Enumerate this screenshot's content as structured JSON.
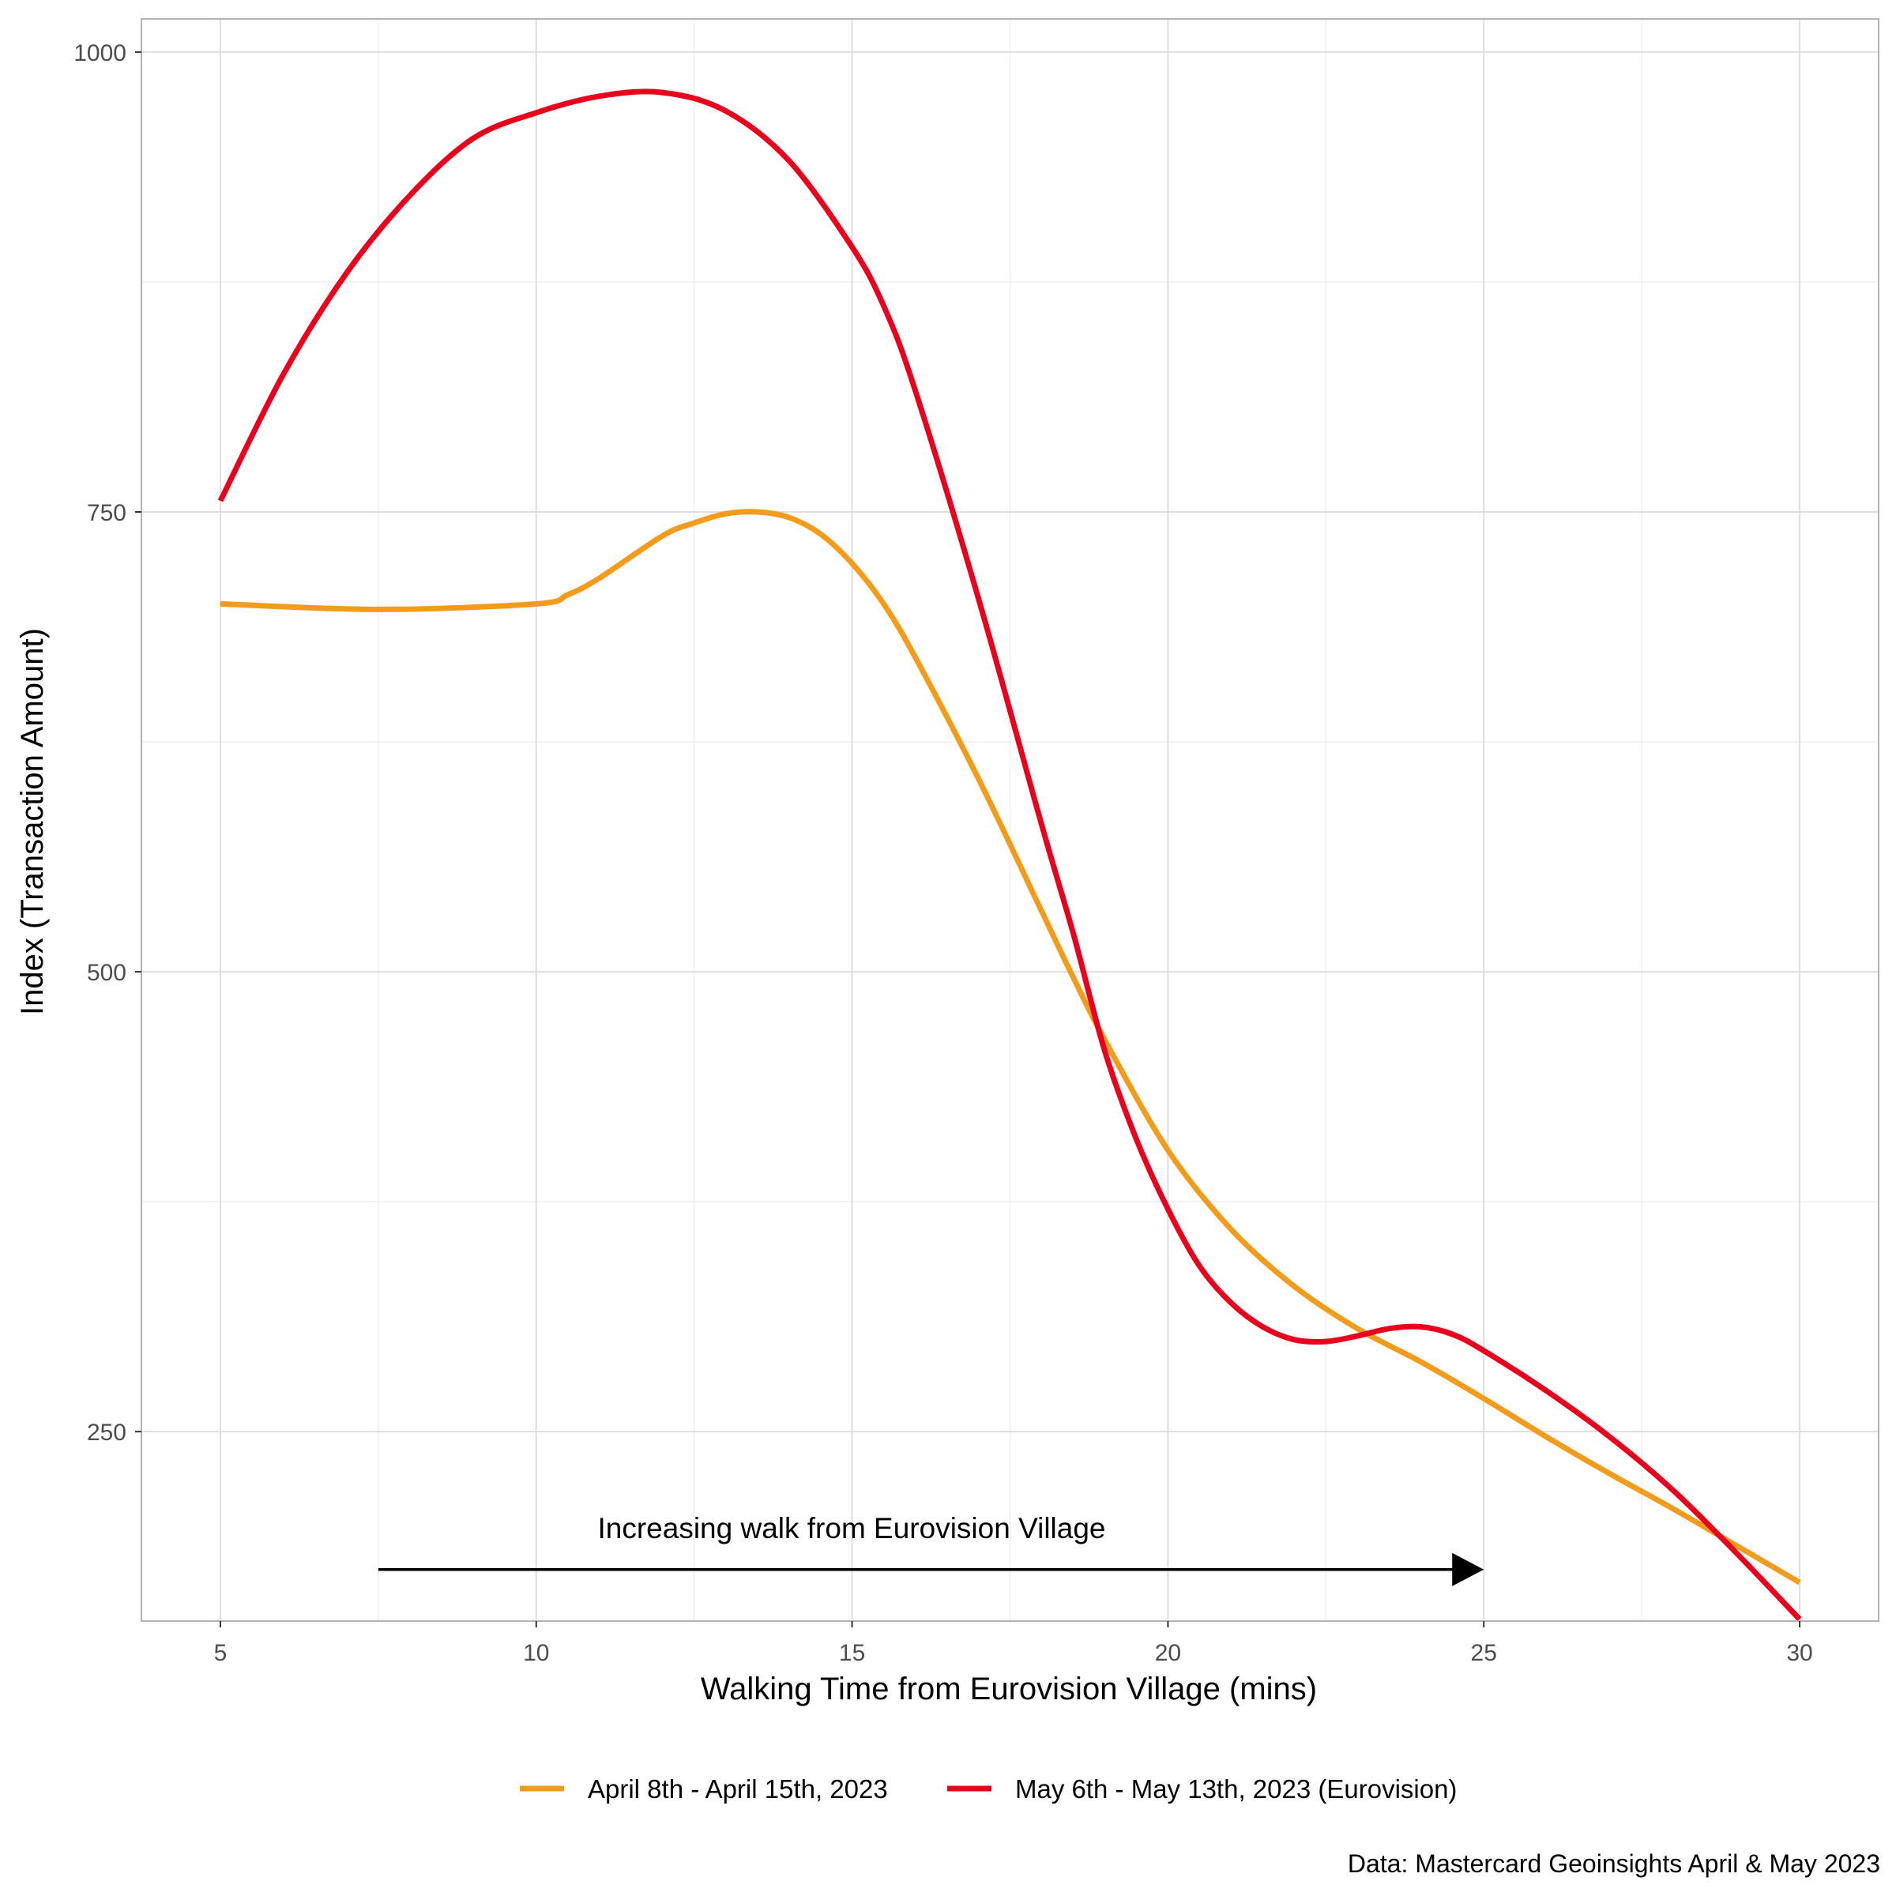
{
  "chart_data": {
    "type": "line",
    "xlabel": "Walking Time from Eurovision Village (mins)",
    "ylabel": "Index (Transaction Amount)",
    "xlim": [
      3.75,
      31.25
    ],
    "ylim": [
      147,
      1018
    ],
    "x_ticks": [
      5,
      10,
      15,
      20,
      25,
      30
    ],
    "y_ticks": [
      250,
      500,
      750,
      1000
    ],
    "x_tick_labels": [
      "5",
      "10",
      "15",
      "20",
      "25",
      "30"
    ],
    "y_tick_labels": [
      "250",
      "500",
      "750",
      "1000"
    ],
    "grid": true,
    "legend_position": "bottom",
    "series": [
      {
        "name": "April 8th - April 15th, 2023",
        "color": "#F39C1C",
        "x": [
          5,
          7.5,
          10,
          10.5,
          11,
          12,
          12.5,
          13,
          13.5,
          14,
          14.5,
          15,
          15.5,
          16,
          17,
          18,
          18.5,
          19,
          20,
          21,
          22,
          23,
          24,
          25,
          26,
          27,
          28,
          29,
          30
        ],
        "y": [
          700,
          697,
          700,
          705,
          714,
          737,
          744,
          749,
          750,
          747,
          738,
          722,
          700,
          671,
          605,
          533,
          497,
          463,
          403,
          360,
          329,
          306,
          288,
          268,
          247,
          227,
          208,
          188,
          168
        ]
      },
      {
        "name": "May 6th - May 13th, 2023 (Eurovision)",
        "color": "#E8001C",
        "x": [
          5,
          6,
          7,
          8,
          9,
          10,
          11,
          12,
          13,
          14,
          15,
          15.5,
          16,
          17,
          18,
          18.5,
          19,
          19.5,
          20,
          20.5,
          21,
          21.5,
          22,
          22.5,
          23,
          23.5,
          24,
          24.5,
          25,
          26,
          27,
          28,
          29,
          30
        ],
        "y": [
          756,
          825,
          880,
          922,
          953,
          967,
          976,
          978,
          968,
          941,
          894,
          862,
          816,
          703,
          580,
          521,
          457,
          409,
          371,
          340,
          320,
          307,
          300,
          299,
          302,
          306,
          307,
          303,
          294,
          272,
          247,
          218,
          184,
          148
        ]
      }
    ],
    "annotation": {
      "text": "Increasing walk from Eurovision Village",
      "arrow_from": [
        7.5,
        175
      ],
      "arrow_to": [
        25,
        175
      ]
    },
    "caption": "Data: Mastercard Geoinsights April & May 2023"
  },
  "colors": {
    "panel_border": "#b3b3b3",
    "grid_major": "#dedede",
    "grid_minor": "#efefef"
  }
}
